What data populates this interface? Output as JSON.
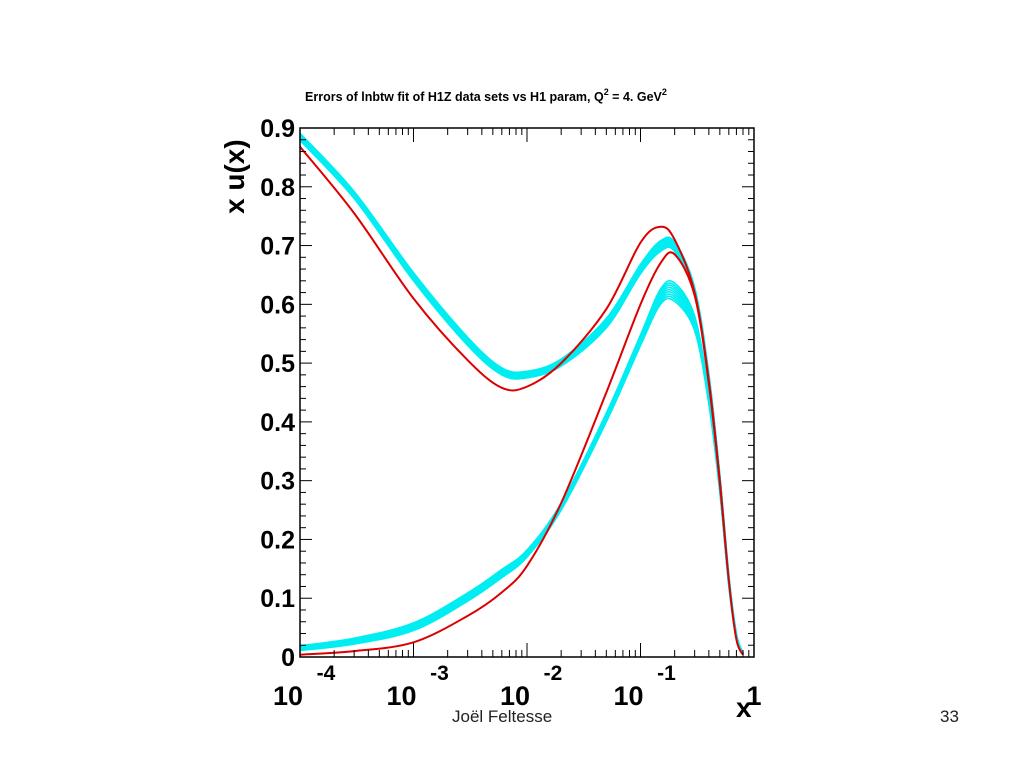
{
  "slide": {
    "author": "Joël Feltesse",
    "page_number": "33"
  },
  "chart_data": {
    "type": "line",
    "title": "Errors of lnbtw fit of H1Z data sets vs H1 param, Q",
    "title_sup1": "2",
    "title_mid": " = 4. GeV",
    "title_sup2": "2",
    "xlabel": "x",
    "ylabel": "x u(x)",
    "x_scale": "log",
    "xlim": [
      0.0001,
      1
    ],
    "ylim": [
      0,
      0.9
    ],
    "yticks": [
      "0",
      "0.1",
      "0.2",
      "0.3",
      "0.4",
      "0.5",
      "0.6",
      "0.7",
      "0.8",
      "0.9"
    ],
    "xticks": [
      {
        "base": "10",
        "exp": "-4"
      },
      {
        "base": "10",
        "exp": "-3"
      },
      {
        "base": "10",
        "exp": "-2"
      },
      {
        "base": "10",
        "exp": "-1"
      },
      {
        "base": "1",
        "exp": ""
      }
    ],
    "grid": false,
    "colors": {
      "band": "#00eef2",
      "param": "#dd0000",
      "frame": "#000000"
    },
    "series": [
      {
        "kind": "band",
        "color": "#00eef2",
        "x": [
          0.0001,
          0.0003,
          0.001,
          0.003,
          0.006,
          0.01,
          0.02,
          0.05,
          0.1,
          0.15,
          0.2,
          0.3,
          0.4,
          0.5,
          0.6,
          0.7,
          0.8
        ],
        "y_low": [
          0.879,
          0.78,
          0.64,
          0.53,
          0.48,
          0.475,
          0.495,
          0.56,
          0.652,
          0.69,
          0.69,
          0.615,
          0.47,
          0.3,
          0.13,
          0.035,
          0.005
        ],
        "y_high": [
          0.891,
          0.792,
          0.654,
          0.544,
          0.492,
          0.486,
          0.507,
          0.576,
          0.668,
          0.708,
          0.706,
          0.629,
          0.482,
          0.31,
          0.14,
          0.04,
          0.007
        ]
      },
      {
        "kind": "line",
        "color": "#dd0000",
        "x": [
          0.0001,
          0.0003,
          0.001,
          0.003,
          0.006,
          0.01,
          0.02,
          0.05,
          0.1,
          0.15,
          0.2,
          0.3,
          0.4,
          0.5,
          0.6,
          0.7,
          0.8
        ],
        "y": [
          0.868,
          0.755,
          0.61,
          0.505,
          0.458,
          0.46,
          0.5,
          0.592,
          0.705,
          0.732,
          0.71,
          0.62,
          0.47,
          0.3,
          0.13,
          0.03,
          0.004
        ]
      },
      {
        "kind": "band",
        "color": "#00eef2",
        "x": [
          0.0001,
          0.0003,
          0.001,
          0.003,
          0.006,
          0.01,
          0.02,
          0.05,
          0.1,
          0.15,
          0.2,
          0.3,
          0.4,
          0.5,
          0.6,
          0.7,
          0.8
        ],
        "y_low": [
          0.011,
          0.022,
          0.045,
          0.095,
          0.135,
          0.17,
          0.25,
          0.4,
          0.53,
          0.6,
          0.605,
          0.555,
          0.43,
          0.28,
          0.12,
          0.03,
          0.004
        ],
        "y_high": [
          0.019,
          0.032,
          0.058,
          0.109,
          0.149,
          0.182,
          0.262,
          0.415,
          0.548,
          0.626,
          0.636,
          0.58,
          0.448,
          0.292,
          0.132,
          0.038,
          0.007
        ]
      },
      {
        "kind": "line",
        "color": "#dd0000",
        "x": [
          0.0001,
          0.0003,
          0.001,
          0.003,
          0.006,
          0.01,
          0.02,
          0.05,
          0.1,
          0.15,
          0.2,
          0.3,
          0.4,
          0.5,
          0.6,
          0.7,
          0.8
        ],
        "y": [
          0.004,
          0.01,
          0.025,
          0.07,
          0.11,
          0.155,
          0.262,
          0.45,
          0.6,
          0.67,
          0.685,
          0.615,
          0.465,
          0.295,
          0.13,
          0.03,
          0.004
        ]
      }
    ]
  }
}
